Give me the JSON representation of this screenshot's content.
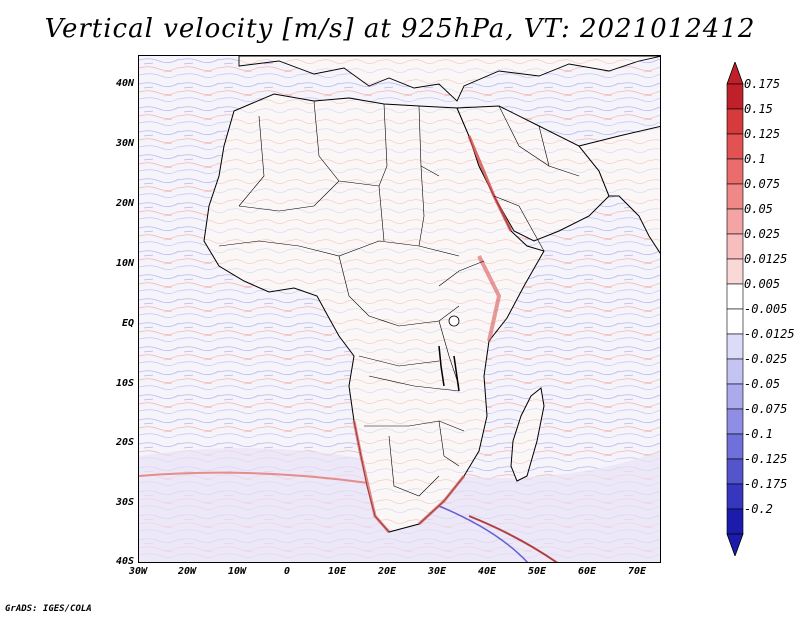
{
  "title": "Vertical velocity [m/s] at 925hPa, VT: 2021012412",
  "credit": "GrADS: IGES/COLA",
  "lat_labels": [
    "40N",
    "30N",
    "20N",
    "10N",
    "EQ",
    "10S",
    "20S",
    "30S",
    "40S"
  ],
  "lon_labels": [
    "30W",
    "20W",
    "10W",
    "0",
    "10E",
    "20E",
    "30E",
    "40E",
    "50E",
    "60E",
    "70E"
  ],
  "colorbar": {
    "labels": [
      "0.175",
      "0.15",
      "0.125",
      "0.1",
      "0.075",
      "0.05",
      "0.025",
      "0.0125",
      "0.005",
      "-0.005",
      "-0.0125",
      "-0.025",
      "-0.05",
      "-0.075",
      "-0.1",
      "-0.125",
      "-0.175",
      "-0.2"
    ],
    "colors": [
      "#c0202a",
      "#d63a3a",
      "#e25252",
      "#ea6c6c",
      "#f08888",
      "#f4a4a4",
      "#f8bebe",
      "#fbd8d8",
      "#ffffff",
      "#ffffff",
      "#dcdcf8",
      "#c4c4f2",
      "#aaaaec",
      "#8e8ee4",
      "#7070da",
      "#5454cc",
      "#3636be",
      "#1c1cac"
    ]
  }
}
